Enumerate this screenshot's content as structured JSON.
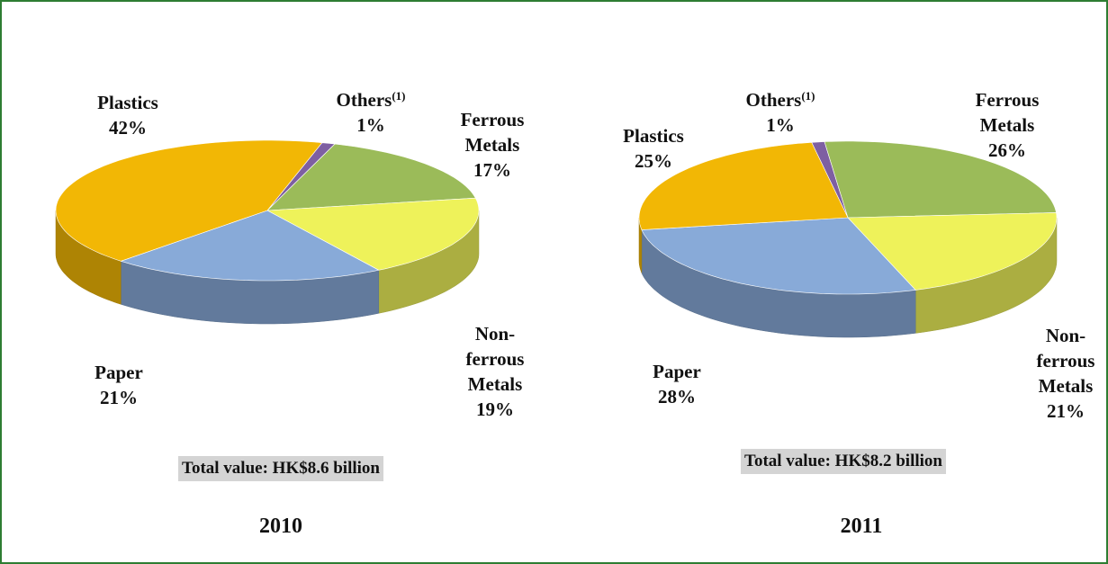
{
  "chart_data": [
    {
      "type": "pie",
      "title": "2010",
      "subtitle": "Total value: HK$8.6 billion",
      "categories": [
        "Others",
        "Ferrous Metals",
        "Non-ferrous Metals",
        "Paper",
        "Plastics"
      ],
      "category_superscripts": {
        "0": "(1)"
      },
      "values": [
        1,
        17,
        19,
        21,
        42
      ],
      "value_labels": [
        "1%",
        "17%",
        "19%",
        "21%",
        "42%"
      ],
      "colors": [
        "#7e5fa2",
        "#9bbb59",
        "#eef25a",
        "#88aad8",
        "#f2b705"
      ]
    },
    {
      "type": "pie",
      "title": "2011",
      "subtitle": "Total value: HK$8.2 billion",
      "categories": [
        "Others",
        "Ferrous Metals",
        "Non-ferrous Metals",
        "Paper",
        "Plastics"
      ],
      "category_superscripts": {
        "0": "(1)"
      },
      "values": [
        1,
        26,
        21,
        28,
        25
      ],
      "value_labels": [
        "1%",
        "26%",
        "21%",
        "28%",
        "25%"
      ],
      "colors": [
        "#7e5fa2",
        "#9bbb59",
        "#eef25a",
        "#88aad8",
        "#f2b705"
      ]
    }
  ]
}
